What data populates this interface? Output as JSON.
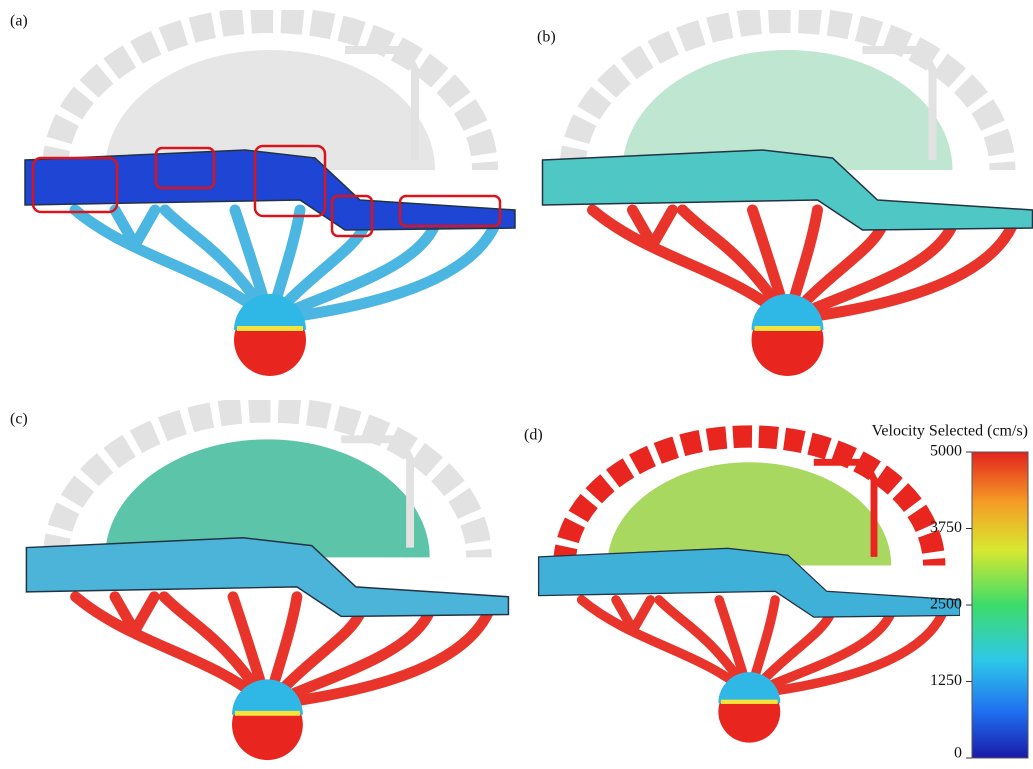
{
  "panels": [
    {
      "label": "(a)"
    },
    {
      "label": "(b)"
    },
    {
      "label": "(c)"
    },
    {
      "label": "(d)"
    }
  ],
  "colorbar": {
    "title": "Velocity Selected (cm/s)",
    "range": [
      0,
      5000
    ],
    "ticks": [
      0,
      1250,
      2500,
      3750,
      5000
    ]
  }
}
